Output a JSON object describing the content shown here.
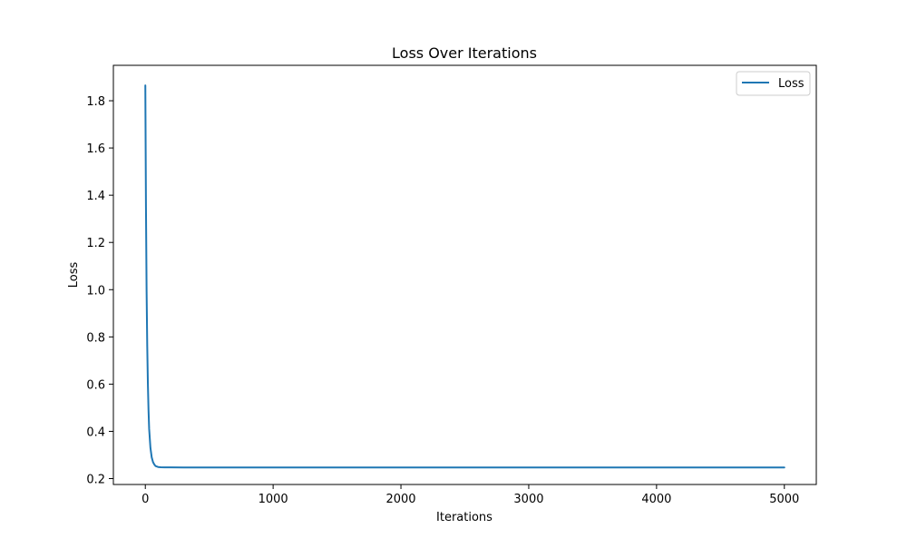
{
  "chart_data": {
    "type": "line",
    "title": "Loss Over Iterations",
    "xlabel": "Iterations",
    "ylabel": "Loss",
    "xlim": [
      -250,
      5250
    ],
    "ylim": [
      0.175,
      1.95
    ],
    "xticks": [
      0,
      1000,
      2000,
      3000,
      4000,
      5000
    ],
    "xtick_labels": [
      "0",
      "1000",
      "2000",
      "3000",
      "4000",
      "5000"
    ],
    "yticks": [
      0.2,
      0.4,
      0.6,
      0.8,
      1.0,
      1.2,
      1.4,
      1.6,
      1.8
    ],
    "ytick_labels": [
      "0.2",
      "0.4",
      "0.6",
      "0.8",
      "1.0",
      "1.2",
      "1.4",
      "1.6",
      "1.8"
    ],
    "grid": false,
    "legend_position": "top-right",
    "series": [
      {
        "name": "Loss",
        "color": "#1f77b4",
        "x": [
          0,
          5,
          10,
          15,
          20,
          25,
          30,
          40,
          50,
          60,
          70,
          80,
          100,
          120,
          150,
          200,
          300,
          500,
          1000,
          2000,
          3000,
          4000,
          5000
        ],
        "y": [
          1.865,
          1.35,
          0.99,
          0.76,
          0.6,
          0.49,
          0.41,
          0.33,
          0.29,
          0.27,
          0.26,
          0.253,
          0.249,
          0.248,
          0.2475,
          0.2473,
          0.2472,
          0.2472,
          0.2472,
          0.2472,
          0.2472,
          0.2472,
          0.2472
        ]
      }
    ]
  }
}
